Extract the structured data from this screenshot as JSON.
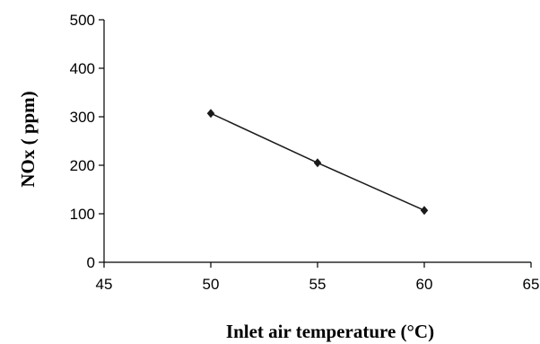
{
  "chart_data": {
    "type": "line",
    "title": "",
    "xlabel": "Inlet air temperature (°C)",
    "ylabel": "NOx ( ppm)",
    "xlim": [
      45,
      65
    ],
    "ylim": [
      0,
      500
    ],
    "x_ticks": [
      "45",
      "50",
      "55",
      "60",
      "65"
    ],
    "y_ticks": [
      "0",
      "100",
      "200",
      "300",
      "400",
      "500"
    ],
    "grid": false,
    "legend": "none",
    "series": [
      {
        "x": [
          50,
          55,
          60
        ],
        "y": [
          307,
          205,
          107
        ],
        "color": "#1a1a1a",
        "marker": "diamond"
      }
    ]
  }
}
